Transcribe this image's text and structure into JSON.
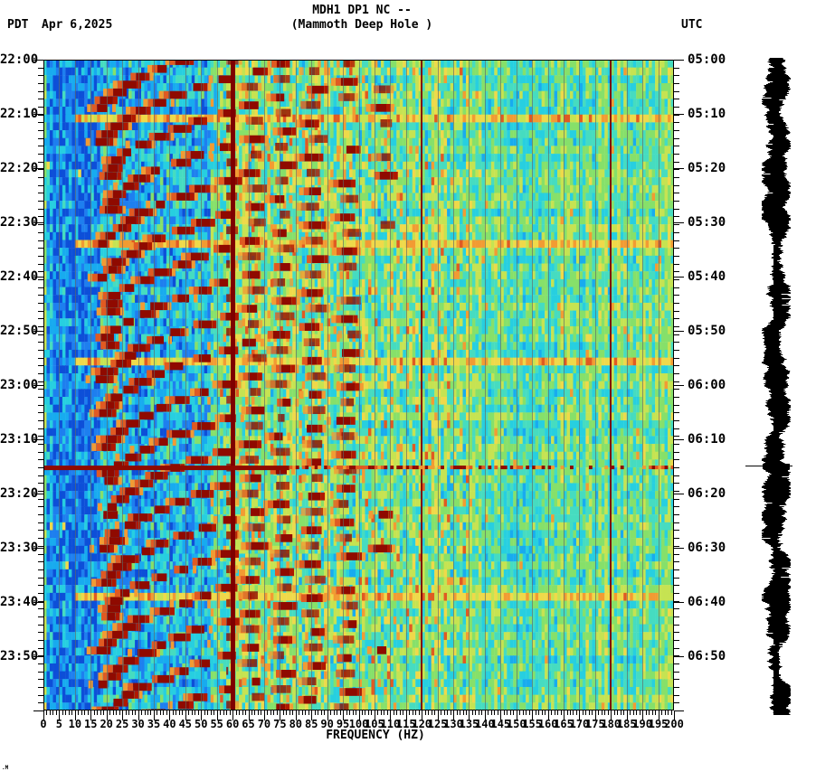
{
  "header": {
    "title_line1": "MDH1 DP1 NC --",
    "title_line2": "(Mammoth Deep Hole )",
    "left_timezone": "PDT",
    "date": "Apr 6,2025",
    "right_timezone": "UTC"
  },
  "footer_mark": ".M",
  "chart_data": {
    "type": "heatmap",
    "subtype": "seismic-spectrogram",
    "station": "MDH1 DP1 NC",
    "station_description": "Mammoth Deep Hole",
    "date": "Apr 6,2025",
    "xlabel": "FREQUENCY (HZ)",
    "x_range_hz": [
      0,
      200
    ],
    "x_major_tick_hz": 5,
    "x_minor_tick_hz": 1,
    "freq_tick_labels": [
      "0",
      "5",
      "10",
      "15",
      "20",
      "25",
      "30",
      "35",
      "40",
      "45",
      "50",
      "55",
      "60",
      "65",
      "70",
      "75",
      "80",
      "85",
      "90",
      "95",
      "100",
      "105",
      "110",
      "115",
      "120",
      "125",
      "130",
      "135",
      "140",
      "145",
      "150",
      "155",
      "160",
      "165",
      "170",
      "175",
      "180",
      "185",
      "190",
      "195",
      "200"
    ],
    "time_span_minutes": 120,
    "left_axis": {
      "timezone": "PDT",
      "labels": [
        "22:00",
        "22:10",
        "22:20",
        "22:30",
        "22:40",
        "22:50",
        "23:00",
        "23:10",
        "23:20",
        "23:30",
        "23:40",
        "23:50"
      ]
    },
    "right_axis": {
      "timezone": "UTC",
      "labels": [
        "05:00",
        "05:10",
        "05:20",
        "05:30",
        "05:40",
        "05:50",
        "06:00",
        "06:10",
        "06:20",
        "06:30",
        "06:40",
        "06:50"
      ]
    },
    "features": {
      "powerline_hz": [
        60,
        120,
        180
      ],
      "powerline_main_hz": 60,
      "event_line": {
        "pdt": "23:16",
        "utc": "06:16",
        "extent_hz": [
          0,
          200
        ],
        "color": "#8F0A00"
      },
      "minor_event_times_min": [
        10.7,
        33.3,
        54.5,
        98.0
      ],
      "tremor_arcs": {
        "count": 20,
        "period_minutes": 6.25,
        "first_crossing_min": 1.5,
        "freq_start_hz": 20,
        "freq_end_hz": 105,
        "description": "repeating upward-gliding drilling/tremor arcs, steep near 20 Hz flattening toward 100 Hz"
      },
      "background_bands": [
        {
          "hz": [
            0,
            18
          ],
          "tone": "blue"
        },
        {
          "hz": [
            18,
            52
          ],
          "tone": "cyan"
        },
        {
          "hz": [
            52,
            135
          ],
          "tone": "green-yellow with orange speckle"
        },
        {
          "hz": [
            135,
            200
          ],
          "tone": "turquoise-green"
        }
      ]
    },
    "palette": {
      "deep_blue": "#0D4FD8",
      "blue": "#1E7FEF",
      "sky": "#18ABEF",
      "cyan": "#27CFE0",
      "turquoise": "#46DCC0",
      "green": "#86E06A",
      "yellow_green": "#C6E352",
      "yellow": "#EFD94A",
      "orange": "#F29B33",
      "red_orange": "#E05A22",
      "dark_red": "#9B1C08",
      "arc_core": "#8F0A00",
      "grid_line": "rgba(95,105,100,0.65)"
    },
    "seismogram": {
      "present": true,
      "color": "#000000",
      "event_marker_time_pdt": "23:16"
    }
  }
}
